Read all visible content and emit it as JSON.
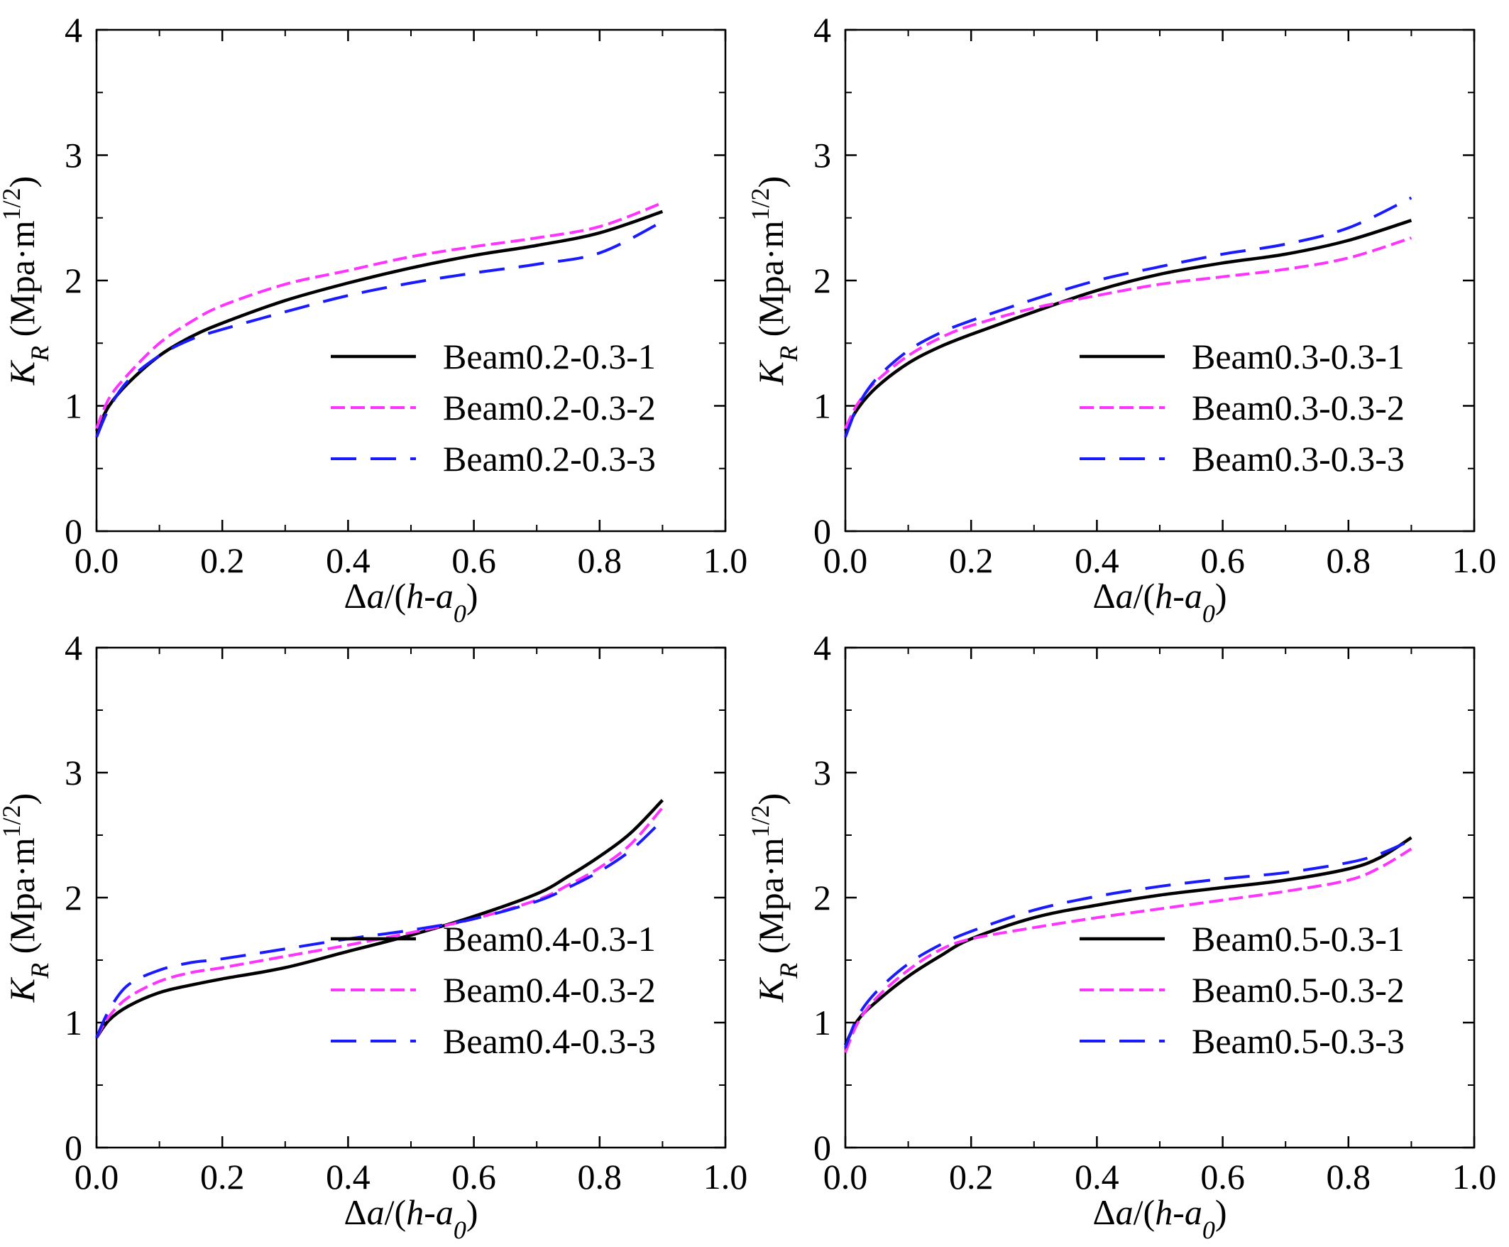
{
  "chart_data": [
    {
      "type": "line",
      "panel": "top-left",
      "ylabel": "K_R (Mpa·m^1/2)",
      "xlabel": "Δa/(h-a0)",
      "xlim": [
        0.0,
        1.0
      ],
      "ylim": [
        0,
        4
      ],
      "xticks": [
        "0.0",
        "0.2",
        "0.4",
        "0.6",
        "0.8",
        "1.0"
      ],
      "yticks": [
        "0",
        "1",
        "2",
        "3",
        "4"
      ],
      "legend_position": "bottom-right",
      "series": [
        {
          "name": "Beam0.2-0.3-1",
          "color": "#000000",
          "style": "solid",
          "x": [
            0.0,
            0.02,
            0.05,
            0.1,
            0.15,
            0.2,
            0.3,
            0.4,
            0.5,
            0.6,
            0.7,
            0.8,
            0.9
          ],
          "y": [
            0.8,
            1.0,
            1.18,
            1.4,
            1.55,
            1.66,
            1.84,
            1.98,
            2.1,
            2.2,
            2.28,
            2.38,
            2.55
          ]
        },
        {
          "name": "Beam0.2-0.3-2",
          "color": "#ff33ff",
          "style": "dash-short",
          "x": [
            0.0,
            0.02,
            0.05,
            0.1,
            0.15,
            0.2,
            0.3,
            0.4,
            0.5,
            0.6,
            0.7,
            0.8,
            0.9
          ],
          "y": [
            0.82,
            1.06,
            1.25,
            1.5,
            1.67,
            1.8,
            1.97,
            2.08,
            2.19,
            2.27,
            2.34,
            2.43,
            2.62
          ]
        },
        {
          "name": "Beam0.2-0.3-3",
          "color": "#1a1aff",
          "style": "dash-long",
          "x": [
            0.0,
            0.02,
            0.05,
            0.1,
            0.15,
            0.2,
            0.3,
            0.4,
            0.5,
            0.6,
            0.7,
            0.8,
            0.9
          ],
          "y": [
            0.75,
            0.98,
            1.2,
            1.4,
            1.53,
            1.61,
            1.75,
            1.88,
            1.98,
            2.06,
            2.13,
            2.22,
            2.47
          ]
        }
      ]
    },
    {
      "type": "line",
      "panel": "top-right",
      "ylabel": "K_R (Mpa·m^1/2)",
      "xlabel": "Δa/(h-a0)",
      "xlim": [
        0.0,
        1.0
      ],
      "ylim": [
        0,
        4
      ],
      "xticks": [
        "0.0",
        "0.2",
        "0.4",
        "0.6",
        "0.8",
        "1.0"
      ],
      "yticks": [
        "0",
        "1",
        "2",
        "3",
        "4"
      ],
      "legend_position": "bottom-right",
      "series": [
        {
          "name": "Beam0.3-0.3-1",
          "color": "#000000",
          "style": "solid",
          "x": [
            0.0,
            0.02,
            0.05,
            0.1,
            0.15,
            0.2,
            0.3,
            0.4,
            0.5,
            0.6,
            0.7,
            0.8,
            0.9
          ],
          "y": [
            0.8,
            0.98,
            1.15,
            1.34,
            1.47,
            1.57,
            1.75,
            1.92,
            2.05,
            2.14,
            2.21,
            2.32,
            2.48
          ]
        },
        {
          "name": "Beam0.3-0.3-2",
          "color": "#ff33ff",
          "style": "dash-short",
          "x": [
            0.0,
            0.02,
            0.05,
            0.1,
            0.15,
            0.2,
            0.3,
            0.4,
            0.5,
            0.6,
            0.7,
            0.8,
            0.9
          ],
          "y": [
            0.82,
            1.02,
            1.2,
            1.4,
            1.54,
            1.64,
            1.78,
            1.88,
            1.97,
            2.03,
            2.09,
            2.18,
            2.34
          ]
        },
        {
          "name": "Beam0.3-0.3-3",
          "color": "#1a1aff",
          "style": "dash-long",
          "x": [
            0.0,
            0.02,
            0.05,
            0.1,
            0.15,
            0.2,
            0.3,
            0.4,
            0.5,
            0.6,
            0.7,
            0.8,
            0.9
          ],
          "y": [
            0.75,
            1.0,
            1.22,
            1.44,
            1.58,
            1.68,
            1.85,
            2.0,
            2.11,
            2.21,
            2.29,
            2.42,
            2.66
          ]
        }
      ]
    },
    {
      "type": "line",
      "panel": "bottom-left",
      "ylabel": "K_R (Mpa·m^1/2)",
      "xlabel": "Δa/(h-a0)",
      "xlim": [
        0.0,
        1.0
      ],
      "ylim": [
        0,
        4
      ],
      "xticks": [
        "0.0",
        "0.2",
        "0.4",
        "0.6",
        "0.8",
        "1.0"
      ],
      "yticks": [
        "0",
        "1",
        "2",
        "3",
        "4"
      ],
      "legend_position": "bottom-right",
      "series": [
        {
          "name": "Beam0.4-0.3-1",
          "color": "#000000",
          "style": "solid",
          "x": [
            0.0,
            0.02,
            0.05,
            0.1,
            0.15,
            0.2,
            0.3,
            0.4,
            0.5,
            0.6,
            0.7,
            0.75,
            0.8,
            0.85,
            0.9
          ],
          "y": [
            0.88,
            1.02,
            1.13,
            1.24,
            1.3,
            1.35,
            1.44,
            1.57,
            1.7,
            1.85,
            2.03,
            2.17,
            2.33,
            2.52,
            2.78
          ]
        },
        {
          "name": "Beam0.4-0.3-2",
          "color": "#ff33ff",
          "style": "dash-short",
          "x": [
            0.0,
            0.02,
            0.05,
            0.1,
            0.15,
            0.2,
            0.3,
            0.4,
            0.5,
            0.6,
            0.7,
            0.75,
            0.8,
            0.85,
            0.9
          ],
          "y": [
            0.88,
            1.05,
            1.2,
            1.33,
            1.4,
            1.44,
            1.53,
            1.62,
            1.72,
            1.83,
            1.98,
            2.1,
            2.24,
            2.43,
            2.72
          ]
        },
        {
          "name": "Beam0.4-0.3-3",
          "color": "#1a1aff",
          "style": "dash-long",
          "x": [
            0.0,
            0.02,
            0.05,
            0.1,
            0.15,
            0.2,
            0.3,
            0.4,
            0.5,
            0.6,
            0.7,
            0.75,
            0.8,
            0.85,
            0.9
          ],
          "y": [
            0.88,
            1.1,
            1.3,
            1.42,
            1.48,
            1.51,
            1.59,
            1.67,
            1.74,
            1.83,
            1.97,
            2.08,
            2.21,
            2.38,
            2.62
          ]
        }
      ]
    },
    {
      "type": "line",
      "panel": "bottom-right",
      "ylabel": "K_R (Mpa·m^1/2)",
      "xlabel": "Δa/(h-a0)",
      "xlim": [
        0.0,
        1.0
      ],
      "ylim": [
        0,
        4
      ],
      "xticks": [
        "0.0",
        "0.2",
        "0.4",
        "0.6",
        "0.8",
        "1.0"
      ],
      "yticks": [
        "0",
        "1",
        "2",
        "3",
        "4"
      ],
      "legend_position": "bottom-right",
      "series": [
        {
          "name": "Beam0.5-0.3-1",
          "color": "#000000",
          "style": "solid",
          "x": [
            0.0,
            0.02,
            0.05,
            0.1,
            0.15,
            0.2,
            0.3,
            0.4,
            0.5,
            0.6,
            0.7,
            0.8,
            0.85,
            0.9
          ],
          "y": [
            0.82,
            1.02,
            1.17,
            1.37,
            1.53,
            1.67,
            1.84,
            1.94,
            2.02,
            2.08,
            2.14,
            2.23,
            2.32,
            2.48
          ]
        },
        {
          "name": "Beam0.5-0.3-2",
          "color": "#ff33ff",
          "style": "dash-short",
          "x": [
            0.0,
            0.02,
            0.05,
            0.1,
            0.15,
            0.2,
            0.3,
            0.4,
            0.5,
            0.6,
            0.7,
            0.8,
            0.85,
            0.9
          ],
          "y": [
            0.76,
            1.0,
            1.2,
            1.42,
            1.58,
            1.67,
            1.76,
            1.84,
            1.91,
            1.98,
            2.05,
            2.14,
            2.24,
            2.39
          ]
        },
        {
          "name": "Beam0.5-0.3-3",
          "color": "#1a1aff",
          "style": "dash-long",
          "x": [
            0.0,
            0.02,
            0.05,
            0.1,
            0.15,
            0.2,
            0.3,
            0.4,
            0.5,
            0.6,
            0.7,
            0.8,
            0.85,
            0.9
          ],
          "y": [
            0.8,
            1.05,
            1.25,
            1.47,
            1.62,
            1.73,
            1.9,
            2.01,
            2.09,
            2.15,
            2.2,
            2.28,
            2.35,
            2.46
          ]
        }
      ]
    }
  ]
}
